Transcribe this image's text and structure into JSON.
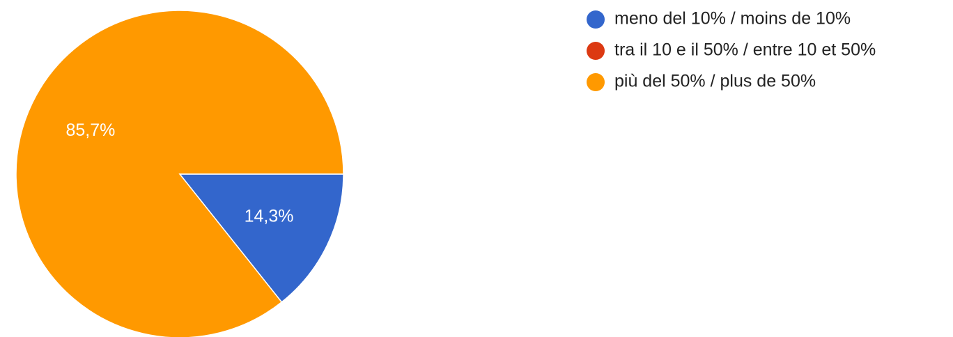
{
  "chart_data": {
    "type": "pie",
    "title": "",
    "legend_position": "top-right",
    "slices": [
      {
        "label": "meno del 10% / moins de 10%",
        "value": 14.3,
        "display": "14,3%",
        "color": "#3366cc"
      },
      {
        "label": "tra il 10 e il 50% / entre 10 et 50%",
        "value": 0,
        "display": "",
        "color": "#dc3912"
      },
      {
        "label": "più del 50% / plus de 50%",
        "value": 85.7,
        "display": "85,7%",
        "color": "#ff9900"
      }
    ]
  }
}
